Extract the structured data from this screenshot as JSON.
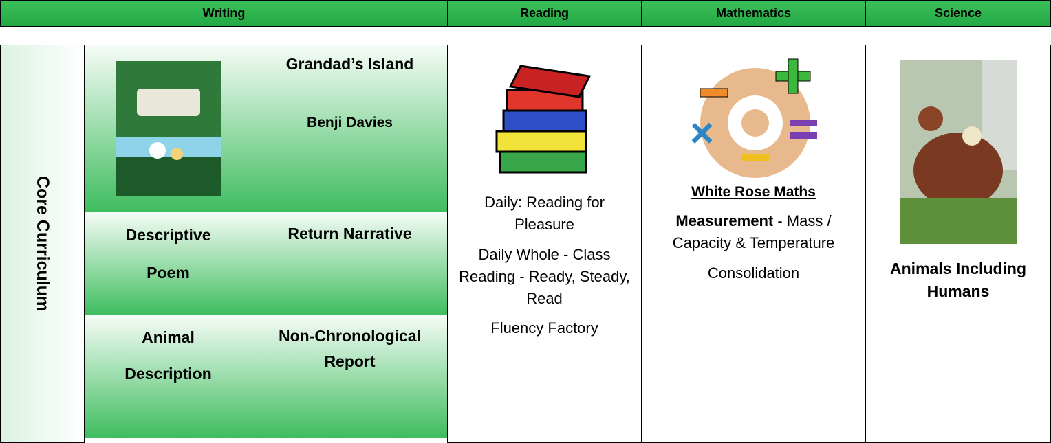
{
  "table": {
    "headers": [
      "Writing",
      "Reading",
      "Mathematics",
      "Science"
    ],
    "row_label": "Core Curriculum",
    "writing": {
      "book_title": "Grandad’s Island",
      "book_author": "Benji Davies",
      "units": [
        [
          "Descriptive Poem",
          "Return Narrative"
        ],
        [
          "Animal Description",
          "Non-Chronological Report"
        ]
      ]
    },
    "reading": [
      "Daily: Reading for Pleasure",
      "Daily Whole - Class Reading - Ready, Steady, Read",
      "Fluency Factory"
    ],
    "mathematics": {
      "scheme": "White Rose Maths",
      "topic": "Measurement",
      "topic_detail": "- Mass / Capacity & Temperature",
      "extra": "Consolidation"
    },
    "science": "Animals Including Humans"
  }
}
